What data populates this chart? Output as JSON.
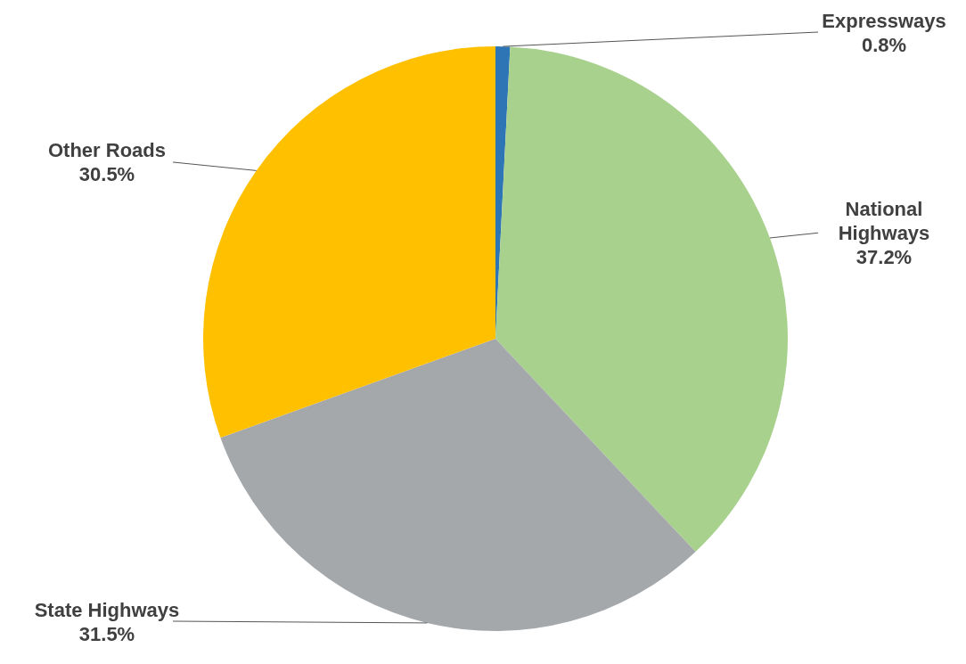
{
  "chart_data": {
    "type": "pie",
    "categories": [
      "Expressways",
      "National Highways",
      "State Highways",
      "Other Roads"
    ],
    "values": [
      0.8,
      37.2,
      31.5,
      30.5
    ],
    "colors": [
      "#2e75b6",
      "#a9d18e",
      "#a5a8ab",
      "#ffc000"
    ],
    "value_labels": [
      "0.8%",
      "37.2%",
      "31.5%",
      "30.5%"
    ]
  }
}
